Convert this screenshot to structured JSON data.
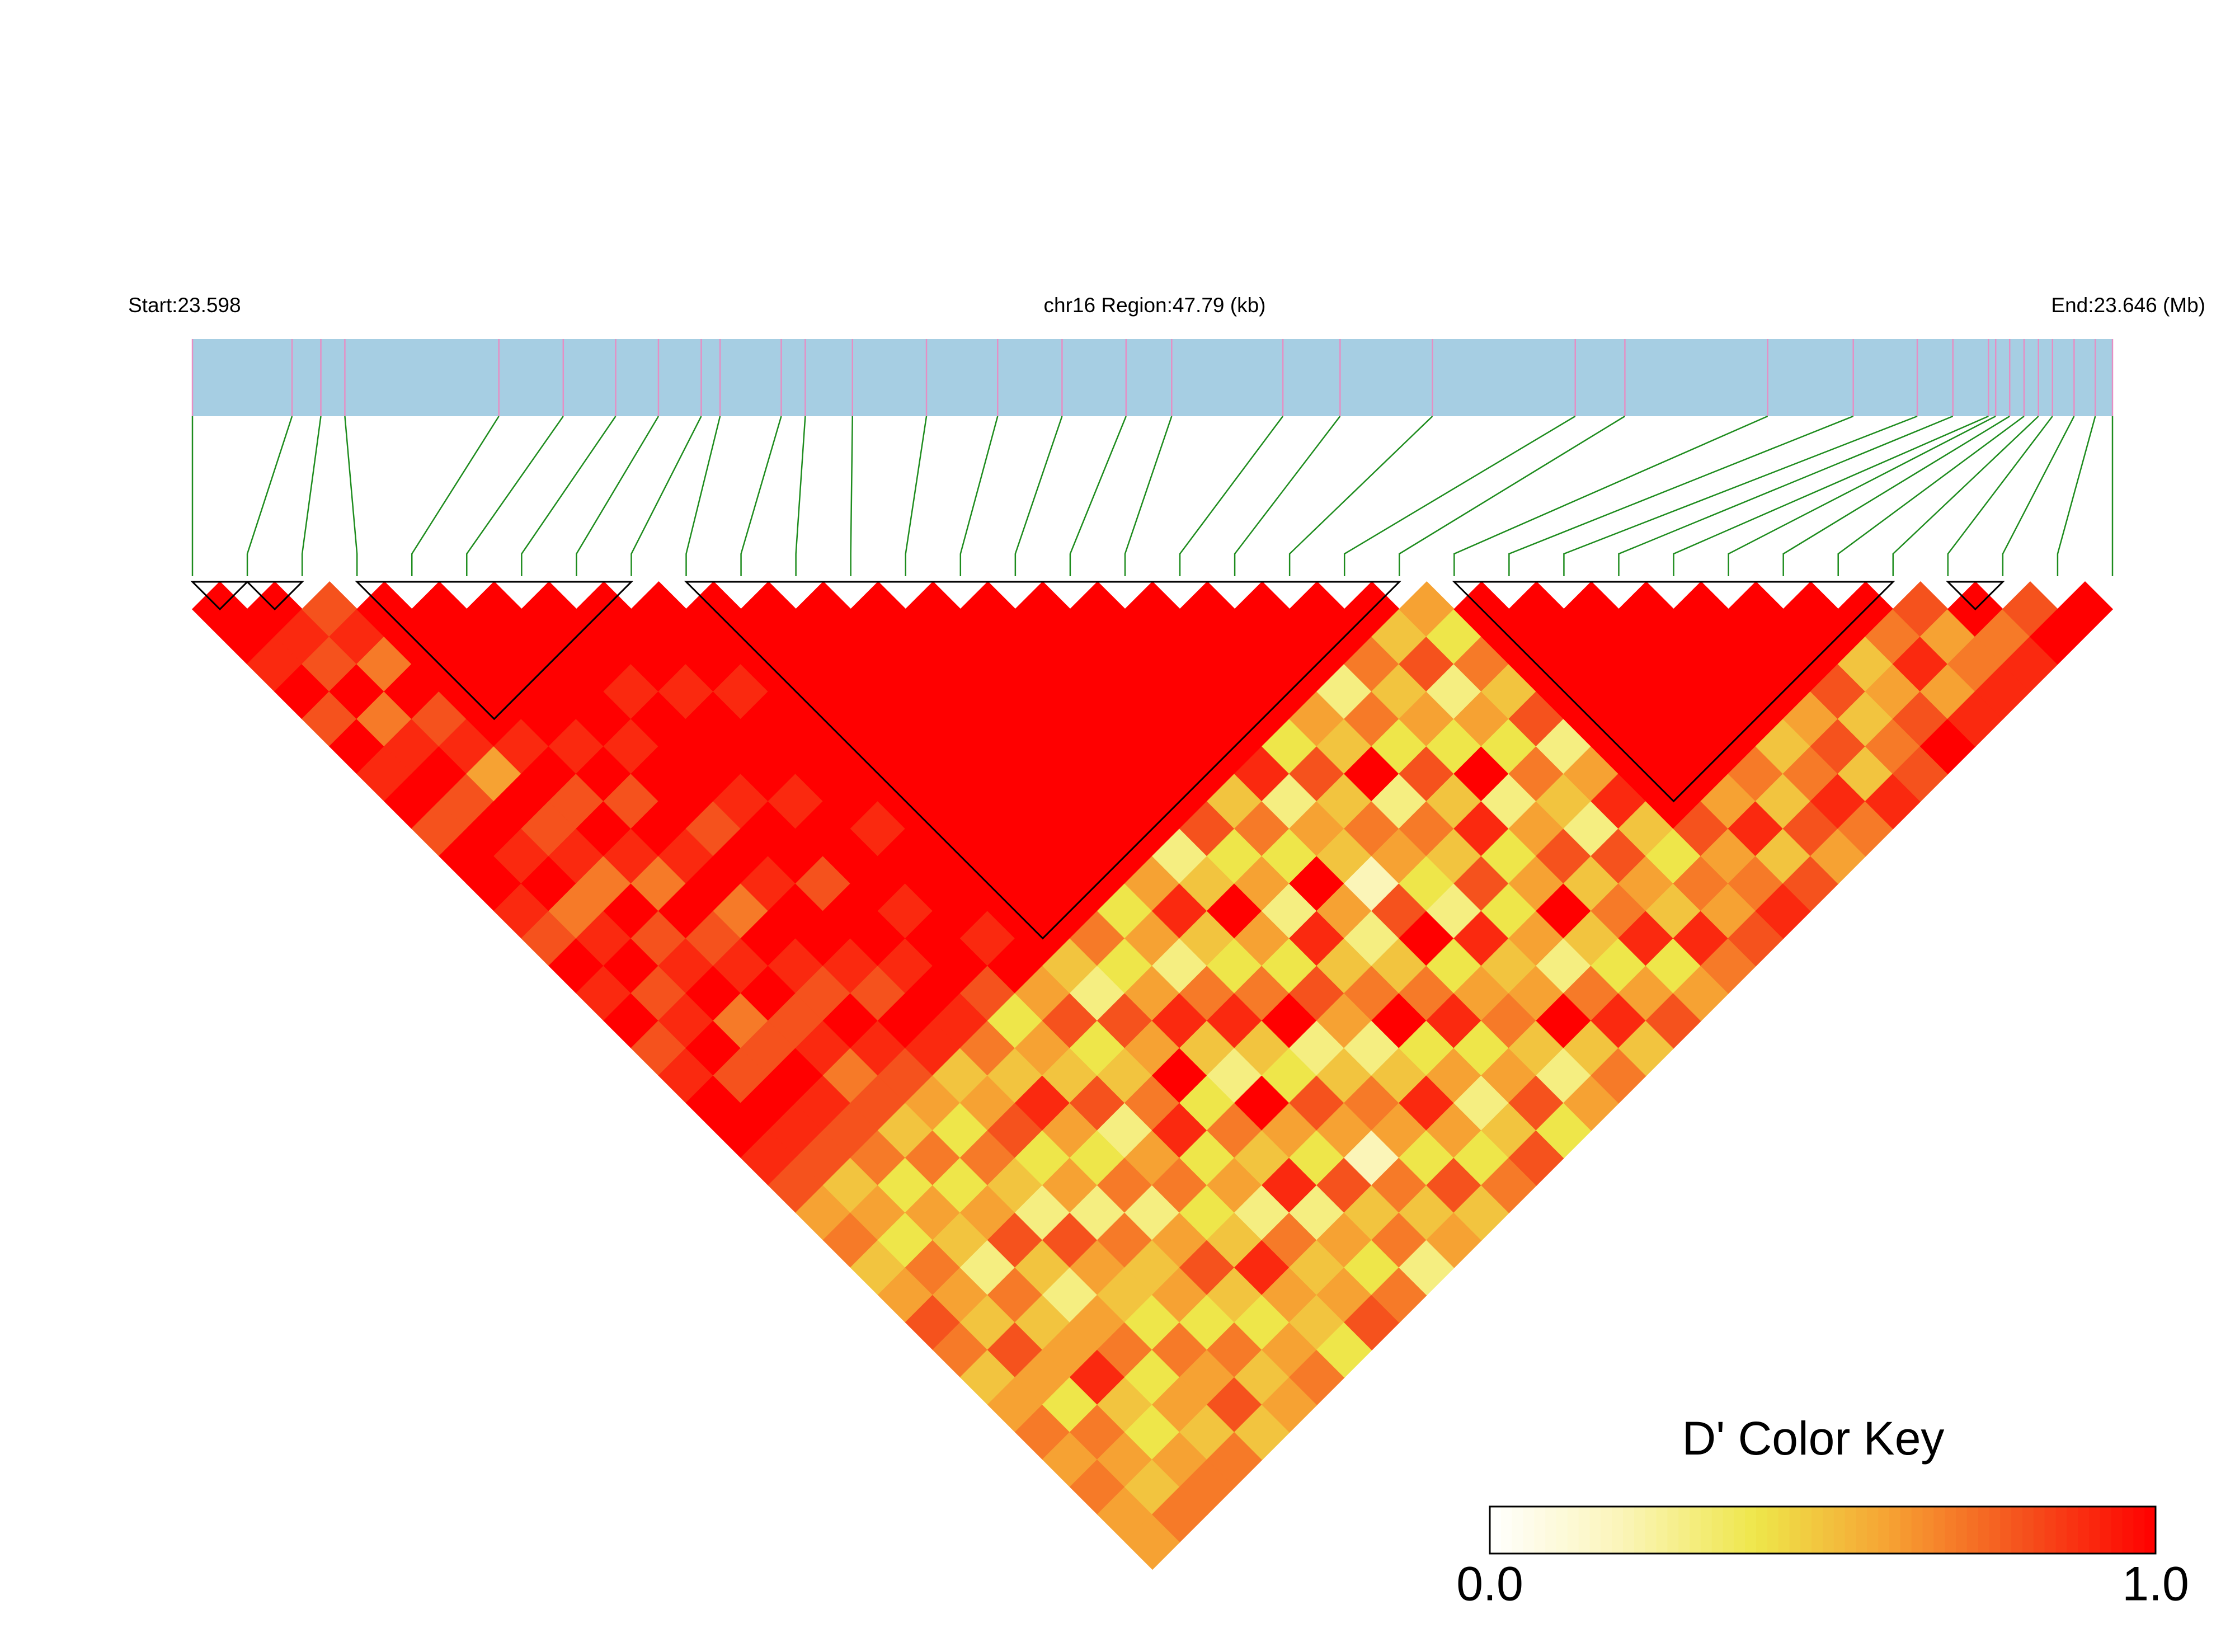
{
  "chart_data": {
    "type": "ld_heatmap",
    "start_label": "Start:23.598",
    "region_label": "chr16 Region:47.79 (kb)",
    "end_label": "End:23.646 (Mb)",
    "xlim": [
      23.598,
      23.646
    ],
    "snp_positions": [
      23.598,
      23.60049,
      23.60121,
      23.60181,
      23.60566,
      23.60727,
      23.60858,
      23.60965,
      23.61072,
      23.61119,
      23.61272,
      23.61332,
      23.6145,
      23.61635,
      23.61813,
      23.61974,
      23.62134,
      23.62248,
      23.62526,
      23.62669,
      23.629,
      23.63257,
      23.63381,
      23.63738,
      23.63952,
      23.64112,
      23.64201,
      23.6429,
      23.64308,
      23.64343,
      23.64379,
      23.64415,
      23.6445,
      23.64504,
      23.64557,
      23.646
    ],
    "bar_color": "#a6cee3",
    "snp_line_color": "#e58fc4",
    "link_color": "#1e8c1e",
    "block_color": "#000000",
    "colorscale": [
      "#ffffff",
      "#fbf5b8",
      "#eee64a",
      "#f6a233",
      "#f5521d",
      "#ff0000"
    ],
    "blocks": [
      [
        0,
        1
      ],
      [
        1,
        2
      ],
      [
        3,
        8
      ],
      [
        9,
        22
      ],
      [
        23,
        31
      ],
      [
        32,
        33
      ]
    ],
    "matrix": [
      [
        1,
        1,
        0.9,
        1,
        0.8,
        1,
        0.9,
        1,
        0.8,
        1,
        1,
        0.9,
        0.8,
        1,
        0.9,
        1,
        0.8,
        0.9,
        1,
        1,
        0.9,
        0.8,
        0.6,
        0.7,
        0.5,
        0.6,
        0.8,
        0.7,
        0.5,
        0.6,
        0.7,
        0.6,
        0.7,
        0.6,
        0.6
      ],
      [
        1,
        0.9,
        0.8,
        1,
        0.7,
        0.9,
        1,
        0.8,
        1,
        0.9,
        1,
        0.7,
        0.9,
        1,
        0.8,
        0.9,
        1,
        0.8,
        1,
        0.9,
        0.8,
        0.5,
        0.6,
        0.4,
        0.7,
        0.6,
        0.5,
        0.8,
        0.6,
        0.4,
        0.7,
        0.6,
        0.5,
        0.7
      ],
      [
        0.8,
        0.9,
        0.7,
        1,
        0.8,
        0.9,
        0.6,
        1,
        0.8,
        0.9,
        0.7,
        1,
        0.8,
        0.9,
        1,
        0.7,
        0.8,
        1,
        0.9,
        0.8,
        0.7,
        0.4,
        0.6,
        0.5,
        0.3,
        0.7,
        0.5,
        0.6,
        0.9,
        0.5,
        0.4,
        0.6,
        0.7
      ],
      [
        1,
        1,
        1,
        1,
        1,
        0.9,
        1,
        0.8,
        1,
        0.9,
        0.7,
        1,
        0.8,
        0.9,
        1,
        0.8,
        0.9,
        0.7,
        0.8,
        0.5,
        0.7,
        0.4,
        0.6,
        0.8,
        0.5,
        0.3,
        0.6,
        0.7,
        0.4,
        0.6,
        0.5,
        0.7
      ],
      [
        1,
        1,
        1,
        1,
        1,
        0.9,
        1,
        0.8,
        1,
        0.9,
        1,
        0.7,
        1,
        0.9,
        0.8,
        1,
        0.9,
        0.8,
        0.6,
        0.4,
        0.7,
        0.5,
        0.3,
        0.8,
        0.6,
        0.5,
        0.4,
        0.7,
        0.6,
        0.8,
        0.5
      ],
      [
        1,
        1,
        1,
        1,
        1,
        0.9,
        1,
        1,
        0.8,
        1,
        0.9,
        1,
        1,
        0.9,
        0.8,
        1,
        0.9,
        0.5,
        0.6,
        0.8,
        0.4,
        0.6,
        0.3,
        0.7,
        0.5,
        0.6,
        0.4,
        0.7,
        0.5,
        0.6
      ],
      [
        1,
        1,
        1,
        0.9,
        1,
        1,
        1,
        0.9,
        1,
        1,
        0.8,
        1,
        1,
        0.9,
        1,
        0.9,
        0.7,
        0.5,
        0.9,
        0.6,
        0.4,
        0.7,
        0.3,
        0.6,
        0.8,
        0.5,
        0.4,
        0.6,
        0.7
      ],
      [
        1,
        1,
        1,
        0.9,
        1,
        1,
        1,
        0.9,
        1,
        1,
        1,
        0.9,
        1,
        1,
        0.8,
        0.4,
        0.6,
        0.5,
        0.8,
        0.3,
        0.6,
        0.7,
        0.4,
        0.5,
        0.9,
        0.6,
        0.5,
        0.4
      ],
      [
        1,
        1,
        1,
        0.9,
        1,
        1,
        1,
        1,
        0.9,
        1,
        1,
        1,
        0.9,
        1,
        0.6,
        0.8,
        0.4,
        0.5,
        0.7,
        0.9,
        0.4,
        0.6,
        0.3,
        0.7,
        0.5,
        0.6,
        0.8
      ],
      [
        1,
        1,
        1,
        1,
        1,
        1,
        1,
        1,
        1,
        1,
        1,
        1,
        1,
        0.5,
        0.3,
        0.8,
        0.6,
        1,
        0.4,
        0.7,
        0.5,
        0.9,
        0.3,
        0.6,
        0.4,
        0.7
      ],
      [
        1,
        1,
        1,
        1,
        1,
        1,
        1,
        1,
        1,
        1,
        1,
        1,
        0.7,
        0.4,
        0.6,
        0.9,
        0.5,
        0.3,
        1,
        0.6,
        0.4,
        0.8,
        0.5,
        0.7,
        0.3
      ],
      [
        1,
        1,
        1,
        1,
        1,
        1,
        1,
        1,
        1,
        1,
        1,
        0.4,
        0.6,
        0.3,
        0.7,
        0.9,
        0.5,
        0.4,
        0.8,
        0.6,
        0.2,
        0.7,
        0.5,
        0.6
      ],
      [
        1,
        1,
        1,
        1,
        1,
        1,
        1,
        1,
        1,
        1,
        0.6,
        0.9,
        0.5,
        0.4,
        0.7,
        1,
        0.3,
        0.5,
        0.7,
        0.6,
        0.4,
        0.8,
        0.5
      ],
      [
        1,
        1,
        1,
        1,
        1,
        1,
        1,
        1,
        1,
        0.3,
        0.5,
        1,
        0.6,
        0.4,
        0.8,
        0.6,
        0.3,
        0.5,
        0.9,
        0.6,
        0.4,
        0.7
      ],
      [
        1,
        1,
        1,
        1,
        1,
        1,
        1,
        1,
        0.8,
        0.4,
        0.6,
        0.3,
        0.9,
        0.5,
        0.7,
        1,
        0.4,
        0.6,
        0.3,
        0.5,
        0.8
      ],
      [
        1,
        1,
        1,
        1,
        1,
        1,
        1,
        0.5,
        0.7,
        0.4,
        1,
        0.6,
        0.3,
        0.5,
        0.7,
        0.9,
        0.4,
        0.6,
        0.8,
        0.4
      ],
      [
        1,
        1,
        1,
        1,
        1,
        1,
        0.9,
        0.3,
        0.6,
        0.5,
        0.2,
        0.8,
        1,
        0.4,
        0.6,
        0.7,
        0.5,
        0.3,
        0.6
      ],
      [
        1,
        1,
        1,
        1,
        1,
        0.4,
        0.8,
        0.5,
        0.7,
        0.6,
        0.4,
        0.3,
        0.9,
        0.5,
        0.6,
        1,
        0.5,
        0.7
      ],
      [
        1,
        1,
        1,
        1,
        0.6,
        0.5,
        1,
        0.3,
        0.7,
        0.5,
        0.8,
        0.4,
        0.6,
        0.3,
        0.7,
        0.9,
        0.5
      ],
      [
        1,
        1,
        1,
        0.3,
        0.7,
        0.4,
        0.8,
        0.5,
        0.9,
        0.4,
        0.6,
        1,
        0.5,
        0.4,
        0.6,
        0.8
      ],
      [
        1,
        1,
        0.7,
        0.5,
        0.6,
        0.4,
        1,
        0.3,
        0.6,
        0.8,
        0.5,
        0.7,
        0.9,
        0.4,
        0.6
      ],
      [
        1,
        0.5,
        0.8,
        0.3,
        0.6,
        0.4,
        0.7,
        0.5,
        0.3,
        0.8,
        0.6,
        0.5,
        0.9,
        0.7
      ],
      [
        0.6,
        0.4,
        0.7,
        0.5,
        0.8,
        0.3,
        0.6,
        0.9,
        0.5,
        0.4,
        0.7,
        0.6,
        0.8
      ],
      [
        1,
        1,
        1,
        1,
        1,
        1,
        1,
        1,
        0.8,
        0.6,
        0.7,
        0.9
      ],
      [
        1,
        1,
        1,
        1,
        1,
        1,
        1,
        0.6,
        0.9,
        0.5,
        0.8
      ],
      [
        1,
        1,
        1,
        1,
        1,
        1,
        0.7,
        0.5,
        0.8,
        0.6
      ],
      [
        1,
        1,
        1,
        1,
        1,
        0.5,
        0.7,
        0.9,
        0.7
      ],
      [
        1,
        1,
        1,
        1,
        0.6,
        0.8,
        0.5,
        0.9
      ],
      [
        1,
        1,
        1,
        0.8,
        0.5,
        0.7,
        0.8
      ],
      [
        1,
        1,
        0.5,
        0.6,
        0.8,
        1
      ],
      [
        1,
        0.7,
        0.9,
        0.6,
        0.9
      ],
      [
        0.8,
        0.6,
        0.7,
        0.9
      ],
      [
        1,
        0.7,
        0.9
      ],
      [
        0.8,
        1
      ],
      [
        1
      ]
    ],
    "color_key": {
      "title": "D' Color Key",
      "lim": [
        0,
        1
      ],
      "ticks": [
        {
          "value": 0,
          "label": "0.0"
        },
        {
          "value": 1,
          "label": "1.0"
        }
      ]
    }
  }
}
